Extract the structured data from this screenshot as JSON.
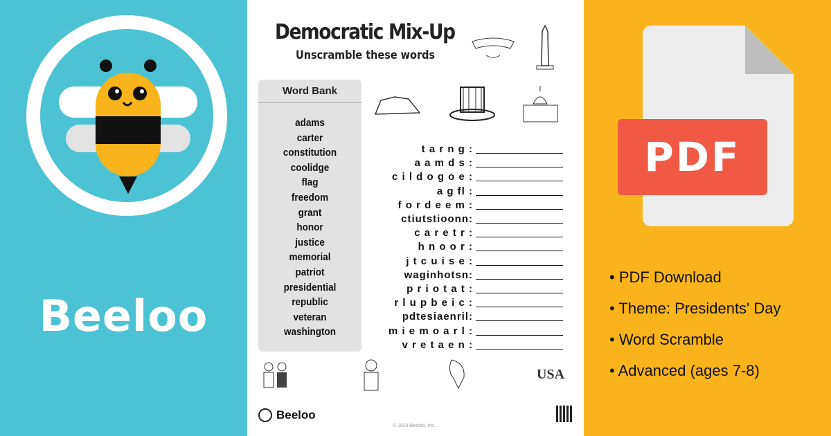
{
  "brand": {
    "name": "Beeloo",
    "colors": {
      "left_bg": "#4cc3d5",
      "right_bg": "#f9b41b",
      "pdf_red": "#f05a45"
    }
  },
  "worksheet": {
    "title": "Democratic Mix-Up",
    "subtitle": "Unscramble these words",
    "word_bank_title": "Word Bank",
    "word_bank": [
      "adams",
      "carter",
      "constitution",
      "coolidge",
      "flag",
      "freedom",
      "grant",
      "honor",
      "justice",
      "memorial",
      "patriot",
      "presidential",
      "republic",
      "veteran",
      "washington"
    ],
    "scrambles": [
      "t a r n g :",
      "a a m d s :",
      "c i l d o g o e :",
      "a g fl :",
      "f o r d e e m :",
      "ctiutstioonn:",
      "c a r e t r :",
      "h n o o r :",
      "j t c u i s e :",
      "waginhotsn:",
      "p r i o t a t :",
      "r l u p b e i c :",
      "pdtesiaenril:",
      "m i e m o a r l :",
      "v r e t a e n :"
    ],
    "usa": "USA",
    "footer_logo": "Beeloo",
    "copyright": "© 2023 Beeloo, Inc."
  },
  "pdf_label": "PDF",
  "features": [
    "• PDF Download",
    "• Theme: Presidents' Day",
    "• Word Scramble",
    "• Advanced (ages 7-8)"
  ]
}
